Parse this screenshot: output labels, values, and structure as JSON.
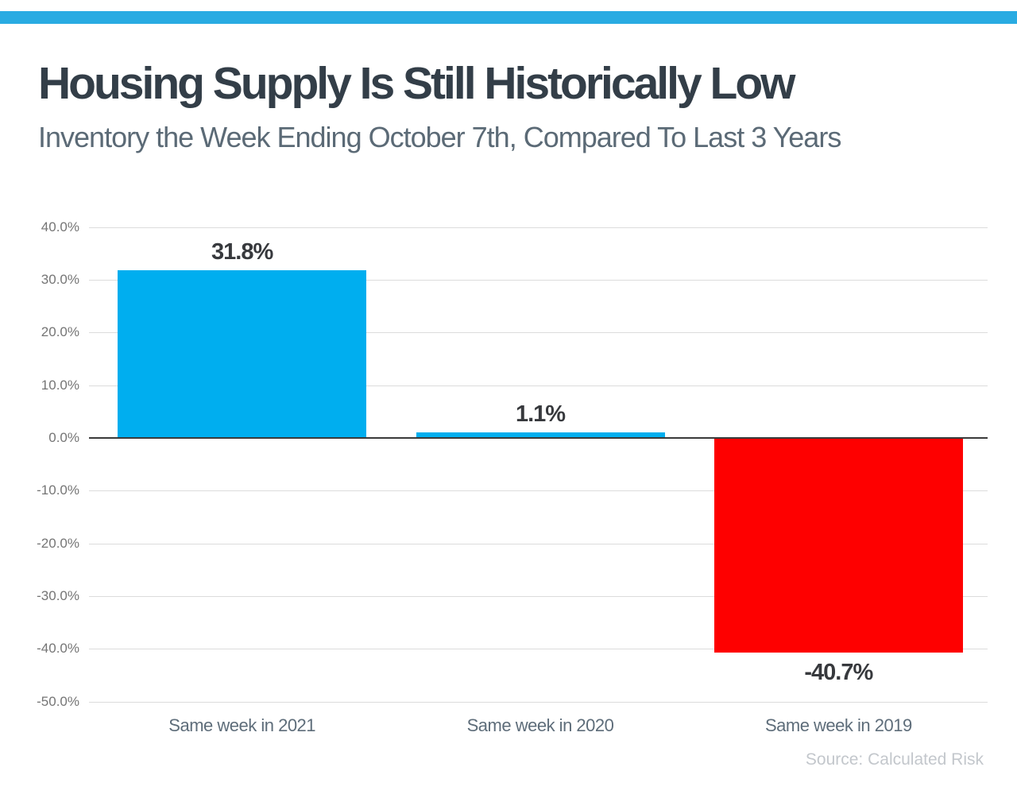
{
  "theme": {
    "accent_color": "#29abe2",
    "positive_bar_color": "#00aeef",
    "negative_bar_color": "#fe0000",
    "title_color": "#333e48",
    "subtitle_color": "#5b6a76"
  },
  "chart_data": {
    "type": "bar",
    "title": "Housing Supply Is Still Historically Low",
    "subtitle": "Inventory the Week Ending October 7th, Compared To Last 3 Years",
    "categories": [
      "Same week in 2021",
      "Same week in 2020",
      "Same week in 2019"
    ],
    "values": [
      31.8,
      1.1,
      -40.7
    ],
    "value_labels": [
      "31.8%",
      "1.1%",
      "-40.7%"
    ],
    "bar_colors": [
      "#00aeef",
      "#00aeef",
      "#fe0000"
    ],
    "ylabel": "",
    "xlabel": "",
    "ylim": [
      -50,
      40
    ],
    "ytick_step": 10,
    "ytick_labels": [
      "40.0%",
      "30.0%",
      "20.0%",
      "10.0%",
      "0.0%",
      "-10.0%",
      "-20.0%",
      "-30.0%",
      "-40.0%",
      "-50.0%"
    ],
    "grid": true,
    "legend": null,
    "source": "Source: Calculated Risk"
  }
}
